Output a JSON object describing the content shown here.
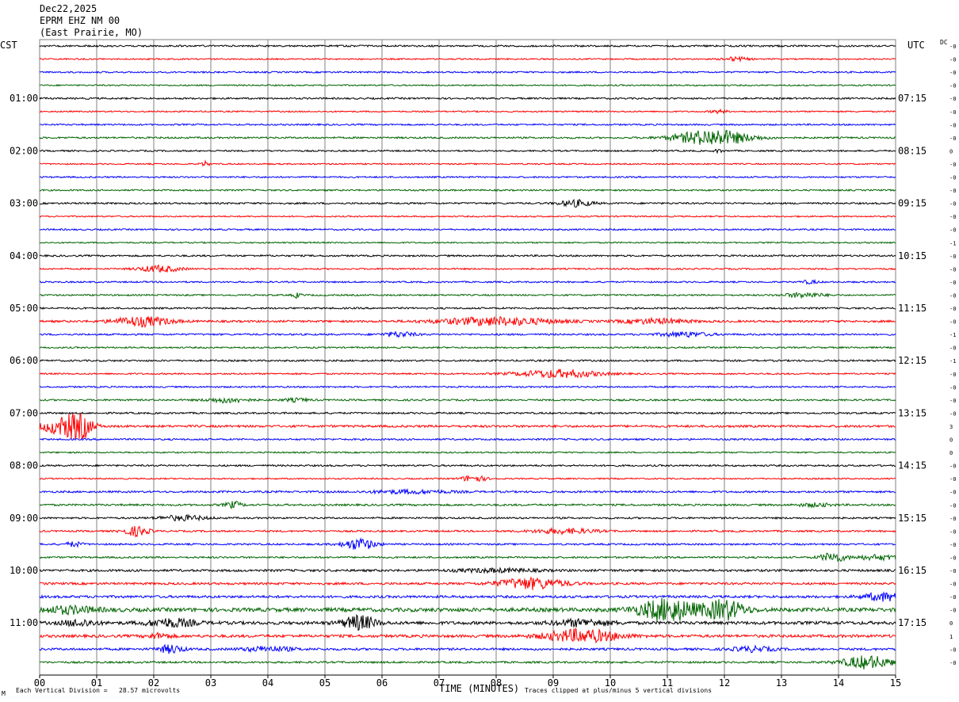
{
  "header": {
    "date": "Dec22,2025",
    "station": "EPRM EHZ NM 00",
    "location": "(East Prairie, MO)"
  },
  "left_tz": "CST",
  "right_tz": "UTC",
  "dc_label": "DC",
  "footer": {
    "vertical_division": "Each Vertical Division =   28.57 microvolts",
    "clipping": "Traces clipped at plus/minus 5 vertical divisions",
    "corner_mark": "M"
  },
  "colors": {
    "cycle": [
      "#000000",
      "#ff0000",
      "#0000ff",
      "#006400"
    ],
    "grid": "#808080"
  },
  "chart_data": {
    "type": "line",
    "title": "EPRM EHZ NM 00",
    "xlabel": "TIME (MINUTES)",
    "x_ticks": [
      "00",
      "01",
      "02",
      "03",
      "04",
      "05",
      "06",
      "07",
      "08",
      "09",
      "10",
      "11",
      "12",
      "13",
      "14",
      "15"
    ],
    "xlim": [
      0,
      15
    ],
    "grid": true,
    "rows_per_hour": 4,
    "left_labels": [
      "01:00",
      "02:00",
      "03:00",
      "04:00",
      "05:00",
      "06:00",
      "07:00",
      "08:00",
      "09:00",
      "10:00",
      "11:00"
    ],
    "right_labels": [
      "07:15",
      "08:15",
      "09:15",
      "10:15",
      "11:15",
      "12:15",
      "13:15",
      "14:15",
      "15:15",
      "16:15",
      "17:15"
    ],
    "dc_offsets": [
      "-0",
      "-0",
      "-0",
      "-0",
      "-0",
      "-0",
      "-0",
      "-0",
      "0",
      "-0",
      "-0",
      "-0",
      "-0",
      "-0",
      "-0",
      "-1",
      "-0",
      "-0",
      "-0",
      "-0",
      "-0",
      "-0",
      "-1",
      "-0",
      "-1",
      "-0",
      "-0",
      "-0",
      "-0",
      "3",
      "0",
      "0",
      "-0",
      "-0",
      "-0",
      "-0",
      "-0",
      "-0",
      "-0",
      "-0",
      "-0",
      "-0",
      "-0",
      "-0",
      "0",
      "1",
      "-0",
      "-0"
    ],
    "traces": [
      {
        "noise": 1.0,
        "events": []
      },
      {
        "noise": 0.8,
        "events": [
          [
            12.2,
            0.3,
            2.5
          ]
        ]
      },
      {
        "noise": 0.9,
        "events": []
      },
      {
        "noise": 0.8,
        "events": []
      },
      {
        "noise": 1.0,
        "events": []
      },
      {
        "noise": 0.8,
        "events": [
          [
            11.9,
            0.2,
            2
          ]
        ]
      },
      {
        "noise": 0.9,
        "events": []
      },
      {
        "noise": 1.0,
        "events": [
          [
            11.8,
            0.9,
            10
          ]
        ]
      },
      {
        "noise": 0.9,
        "events": [
          [
            11.9,
            0.1,
            2
          ]
        ]
      },
      {
        "noise": 0.8,
        "events": [
          [
            2.9,
            0.1,
            3
          ]
        ]
      },
      {
        "noise": 0.9,
        "events": []
      },
      {
        "noise": 0.9,
        "events": []
      },
      {
        "noise": 1.0,
        "events": [
          [
            9.4,
            0.4,
            4
          ]
        ]
      },
      {
        "noise": 0.8,
        "events": []
      },
      {
        "noise": 0.9,
        "events": []
      },
      {
        "noise": 0.8,
        "events": []
      },
      {
        "noise": 1.0,
        "events": []
      },
      {
        "noise": 0.9,
        "events": [
          [
            2.1,
            0.5,
            4
          ]
        ]
      },
      {
        "noise": 0.9,
        "events": [
          [
            13.5,
            0.2,
            2
          ]
        ]
      },
      {
        "noise": 0.9,
        "events": [
          [
            4.5,
            0.1,
            3
          ],
          [
            13.4,
            0.5,
            3
          ]
        ]
      },
      {
        "noise": 1.0,
        "events": []
      },
      {
        "noise": 1.2,
        "events": [
          [
            1.8,
            0.7,
            6
          ],
          [
            8.0,
            1.4,
            5
          ],
          [
            10.8,
            0.8,
            3
          ]
        ]
      },
      {
        "noise": 1.0,
        "events": [
          [
            6.3,
            0.4,
            3
          ],
          [
            11.3,
            0.6,
            3
          ]
        ]
      },
      {
        "noise": 0.9,
        "events": []
      },
      {
        "noise": 1.0,
        "events": []
      },
      {
        "noise": 0.9,
        "events": [
          [
            9.1,
            1.0,
            5
          ]
        ]
      },
      {
        "noise": 0.9,
        "events": []
      },
      {
        "noise": 1.0,
        "events": [
          [
            3.3,
            0.5,
            3
          ],
          [
            4.5,
            0.3,
            2
          ]
        ]
      },
      {
        "noise": 1.0,
        "events": []
      },
      {
        "noise": 1.3,
        "events": [
          [
            0.4,
            0.5,
            10
          ],
          [
            0.7,
            0.3,
            14
          ]
        ]
      },
      {
        "noise": 1.0,
        "events": []
      },
      {
        "noise": 0.8,
        "events": []
      },
      {
        "noise": 1.0,
        "events": []
      },
      {
        "noise": 0.8,
        "events": [
          [
            7.6,
            0.3,
            4
          ]
        ]
      },
      {
        "noise": 1.1,
        "events": [
          [
            6.5,
            1.0,
            2
          ]
        ]
      },
      {
        "noise": 1.1,
        "events": [
          [
            3.4,
            0.2,
            4
          ],
          [
            13.6,
            0.4,
            2
          ]
        ]
      },
      {
        "noise": 1.0,
        "events": [
          [
            2.5,
            0.6,
            3
          ]
        ]
      },
      {
        "noise": 1.0,
        "events": [
          [
            1.7,
            0.3,
            6
          ],
          [
            9.2,
            0.8,
            3
          ]
        ]
      },
      {
        "noise": 1.0,
        "events": [
          [
            0.6,
            0.2,
            3
          ],
          [
            5.6,
            0.4,
            7
          ]
        ]
      },
      {
        "noise": 1.0,
        "events": [
          [
            13.9,
            0.3,
            6
          ],
          [
            14.7,
            0.6,
            3
          ]
        ]
      },
      {
        "noise": 1.3,
        "events": [
          [
            8.0,
            1.0,
            2
          ]
        ]
      },
      {
        "noise": 1.3,
        "events": [
          [
            8.6,
            0.8,
            7
          ]
        ]
      },
      {
        "noise": 1.4,
        "events": [
          [
            14.8,
            0.5,
            5
          ]
        ]
      },
      {
        "noise": 2.2,
        "events": [
          [
            0.5,
            0.7,
            4
          ],
          [
            11.0,
            0.7,
            14
          ],
          [
            12.0,
            0.5,
            12
          ]
        ]
      },
      {
        "noise": 1.8,
        "events": [
          [
            0.7,
            0.4,
            4
          ],
          [
            2.3,
            0.6,
            5
          ],
          [
            5.6,
            0.4,
            9
          ],
          [
            9.5,
            0.7,
            4
          ]
        ]
      },
      {
        "noise": 1.6,
        "events": [
          [
            9.5,
            0.9,
            8
          ],
          [
            2.1,
            0.3,
            3
          ]
        ]
      },
      {
        "noise": 1.3,
        "events": [
          [
            2.3,
            0.3,
            5
          ],
          [
            4.0,
            0.6,
            3
          ],
          [
            12.5,
            0.5,
            3
          ]
        ]
      },
      {
        "noise": 1.1,
        "events": [
          [
            14.5,
            0.6,
            8
          ]
        ]
      }
    ]
  }
}
